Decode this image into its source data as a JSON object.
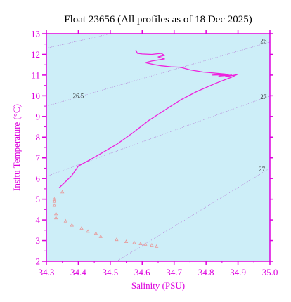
{
  "colors": {
    "axis": "#dd00dd",
    "plot_background": "#cdeef8",
    "profile_line": "#ee22dd",
    "marker": "#e89898",
    "isopycnal": "#b06ad0",
    "title": "#000000"
  },
  "chart_data": {
    "type": "line",
    "title": "Float 23656  (All profiles as of 18 Dec 2025)",
    "xlabel": "Salinity (PSU)",
    "ylabel": "Insitu Temperature (°C)",
    "xlim": [
      34.3,
      35.0
    ],
    "ylim": [
      2,
      13
    ],
    "xticks": [
      "34.3",
      "34.4",
      "34.5",
      "34.6",
      "34.7",
      "34.8",
      "34.9",
      "35.0"
    ],
    "yticks": [
      "2",
      "3",
      "4",
      "5",
      "6",
      "7",
      "8",
      "9",
      "10",
      "11",
      "12",
      "13"
    ],
    "grid": false,
    "isopycnals": [
      {
        "label": "26",
        "points": [
          [
            34.3,
            12.3
          ],
          [
            34.5,
            13.0
          ]
        ],
        "label_at": null
      },
      {
        "label": "26.5",
        "points": [
          [
            34.3,
            9.5
          ],
          [
            35.0,
            12.6
          ]
        ],
        "label_at": [
          34.4,
          10.0
        ]
      },
      {
        "label": "26",
        "points": [
          [
            34.98,
            12.65
          ]
        ],
        "label_at": [
          34.98,
          12.65
        ]
      },
      {
        "label": "27",
        "points": [
          [
            34.3,
            6.1
          ],
          [
            35.0,
            10.0
          ]
        ],
        "label_at": [
          34.98,
          9.95
        ]
      },
      {
        "label": "27",
        "points": [
          [
            34.52,
            2.0
          ],
          [
            35.0,
            6.5
          ]
        ],
        "label_at": [
          34.975,
          6.45
        ]
      }
    ],
    "series": [
      {
        "style": "line",
        "points": [
          [
            34.34,
            5.55
          ],
          [
            34.36,
            5.85
          ],
          [
            34.38,
            6.15
          ],
          [
            34.4,
            6.6
          ],
          [
            34.43,
            6.85
          ],
          [
            34.47,
            7.2
          ],
          [
            34.52,
            7.65
          ],
          [
            34.57,
            8.2
          ],
          [
            34.62,
            8.8
          ],
          [
            34.67,
            9.3
          ],
          [
            34.72,
            9.8
          ],
          [
            34.77,
            10.2
          ],
          [
            34.83,
            10.6
          ],
          [
            34.88,
            10.9
          ],
          [
            34.9,
            11.05
          ],
          [
            34.89,
            11.0
          ],
          [
            34.86,
            10.92
          ],
          [
            34.88,
            11.0
          ],
          [
            34.84,
            10.95
          ],
          [
            34.87,
            11.02
          ],
          [
            34.82,
            11.0
          ],
          [
            34.86,
            11.05
          ],
          [
            34.79,
            11.15
          ],
          [
            34.75,
            11.25
          ],
          [
            34.72,
            11.38
          ],
          [
            34.69,
            11.4
          ],
          [
            34.66,
            11.45
          ],
          [
            34.64,
            11.5
          ],
          [
            34.61,
            11.6
          ],
          [
            34.63,
            11.68
          ],
          [
            34.67,
            11.78
          ],
          [
            34.65,
            11.88
          ],
          [
            34.67,
            11.95
          ],
          [
            34.66,
            12.05
          ],
          [
            34.63,
            12.0
          ],
          [
            34.6,
            12.02
          ],
          [
            34.585,
            12.05
          ],
          [
            34.58,
            12.22
          ]
        ]
      },
      {
        "style": "markers",
        "points": [
          [
            34.325,
            5.0
          ],
          [
            34.325,
            4.9
          ],
          [
            34.325,
            4.7
          ],
          [
            34.33,
            4.3
          ],
          [
            34.33,
            4.1
          ],
          [
            34.35,
            5.35
          ],
          [
            34.36,
            3.95
          ],
          [
            34.38,
            3.75
          ],
          [
            34.41,
            3.6
          ],
          [
            34.43,
            3.45
          ],
          [
            34.455,
            3.35
          ],
          [
            34.47,
            3.2
          ],
          [
            34.52,
            3.05
          ],
          [
            34.55,
            2.95
          ],
          [
            34.575,
            2.9
          ],
          [
            34.595,
            2.85
          ],
          [
            34.61,
            2.82
          ],
          [
            34.63,
            2.78
          ],
          [
            34.645,
            2.72
          ]
        ]
      }
    ]
  }
}
